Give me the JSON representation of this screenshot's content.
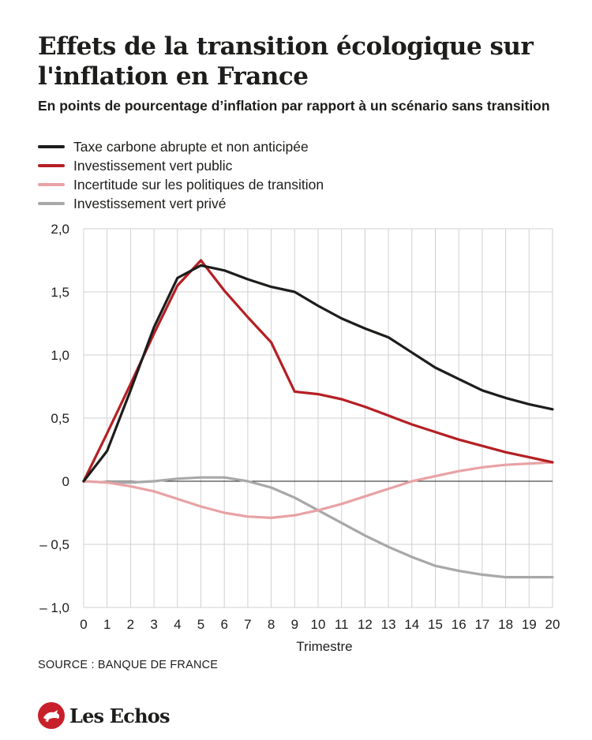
{
  "title": "Effets de la transition écologique sur l'inflation en France",
  "subtitle": "En points de pourcentage d’inflation par rapport à un scénario sans transition",
  "source": "SOURCE : BANQUE DE FRANCE",
  "brand": "Les Echos",
  "colors": {
    "black": "#1d1d1b",
    "red": "#b51f24",
    "pink": "#e8a2a5",
    "grey": "#a8a8a8",
    "grid": "#d0d0d0",
    "logo": "#c8202a"
  },
  "chart_data": {
    "type": "line",
    "title": "Effets de la transition écologique sur l'inflation en France",
    "subtitle": "En points de pourcentage d’inflation par rapport à un scénario sans transition",
    "xlabel": "Trimestre",
    "ylabel": "",
    "x": [
      0,
      1,
      2,
      3,
      4,
      5,
      6,
      7,
      8,
      9,
      10,
      11,
      12,
      13,
      14,
      15,
      16,
      17,
      18,
      19,
      20
    ],
    "xlim": [
      0,
      20
    ],
    "ylim": [
      -1.0,
      2.0
    ],
    "yticks": [
      2.0,
      1.5,
      1.0,
      0.5,
      0,
      -0.5,
      -1.0
    ],
    "ytick_labels": [
      "2,0",
      "1,5",
      "1,0",
      "0,5",
      "0",
      "– 0,5",
      "– 1,0"
    ],
    "xtick_labels": [
      "0",
      "1",
      "2",
      "3",
      "4",
      "5",
      "6",
      "7",
      "8",
      "9",
      "10",
      "11",
      "12",
      "13",
      "14",
      "15",
      "16",
      "17",
      "18",
      "19",
      "20"
    ],
    "grid": "vertical and horizontal",
    "legend_position": "top-left",
    "series": [
      {
        "name": "Taxe carbone abrupte et non anticipée",
        "color": "#1d1d1b",
        "values": [
          0,
          0.24,
          0.72,
          1.22,
          1.61,
          1.71,
          1.67,
          1.6,
          1.54,
          1.5,
          1.39,
          1.29,
          1.21,
          1.14,
          1.02,
          0.9,
          0.81,
          0.72,
          0.66,
          0.61,
          0.57
        ]
      },
      {
        "name": "Investissement vert public",
        "color": "#b51f24",
        "values": [
          0,
          0.38,
          0.77,
          1.17,
          1.55,
          1.75,
          1.51,
          1.3,
          1.1,
          0.71,
          0.69,
          0.65,
          0.59,
          0.52,
          0.45,
          0.39,
          0.33,
          0.28,
          0.23,
          0.19,
          0.15
        ]
      },
      {
        "name": "Incertitude sur les politiques de transition",
        "color": "#e8a2a5",
        "values": [
          0,
          -0.01,
          -0.04,
          -0.08,
          -0.14,
          -0.2,
          -0.25,
          -0.28,
          -0.29,
          -0.27,
          -0.23,
          -0.18,
          -0.12,
          -0.06,
          0.0,
          0.04,
          0.08,
          0.11,
          0.13,
          0.14,
          0.15
        ]
      },
      {
        "name": "Investissement vert privé",
        "color": "#a8a8a8",
        "values": [
          0,
          -0.01,
          -0.01,
          0.0,
          0.02,
          0.03,
          0.03,
          0.0,
          -0.05,
          -0.13,
          -0.23,
          -0.33,
          -0.43,
          -0.52,
          -0.6,
          -0.67,
          -0.71,
          -0.74,
          -0.76,
          -0.76,
          -0.76
        ]
      }
    ]
  }
}
